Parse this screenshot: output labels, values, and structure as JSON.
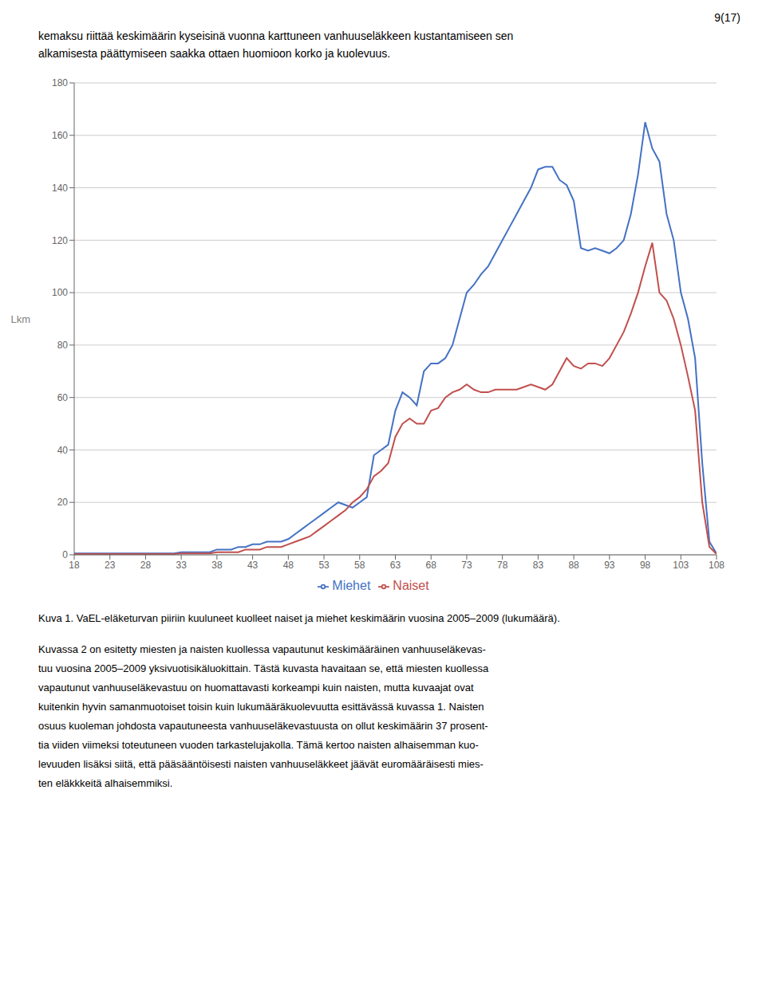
{
  "page_number": "9(17)",
  "header_lines": [
    "kemaksu riittää keskimäärin kyseisinä vuonna karttuneen vanhuuseläkkeen kustantamiseen sen",
    "alkamisesta päättymiseen saakka ottaen huomioon korko ja kuolevuus."
  ],
  "caption": "Kuva 1. VaEL-eläketurvan piiriin kuuluneet kuolleet naiset ja miehet keskimäärin vuosina 2005–2009 (lukumäärä).",
  "body_text": [
    "Kuvassa 2 on esitetty miesten ja naisten kuollessa vapautunut keskimääräinen vanhuuseläkevas-",
    "tuu vuosina 2005–2009 yksivuotisikäluokittain. Tästä kuvasta havaitaan se, että miesten kuollessa",
    "vapautunut vanhuuseläkevastuu on huomattavasti korkeampi kuin naisten, mutta kuvaajat ovat",
    "kuitenkin hyvin samanmuotoiset toisin kuin lukumääräkuolevuutta esittävässä kuvassa 1. Naisten",
    "osuus kuoleman johdosta vapautuneesta vanhuuseläkevastuusta on ollut keskimäärin 37 prosent-",
    "tia viiden viimeksi toteutuneen vuoden tarkastelujakolla. Tämä kertoo naisten alhaisemman kuo-",
    "levuuden lisäksi siitä, että pääsääntöisesti naisten vanhuuseläkkeet jäävät euromääräisesti mies-",
    "ten eläkkkeitä alhaisemmiksi."
  ],
  "chart_data": {
    "type": "line",
    "ylabel": "Lkm",
    "x": [
      18,
      19,
      20,
      21,
      22,
      23,
      24,
      25,
      26,
      27,
      28,
      29,
      30,
      31,
      32,
      33,
      34,
      35,
      36,
      37,
      38,
      39,
      40,
      41,
      42,
      43,
      44,
      45,
      46,
      47,
      48,
      49,
      50,
      51,
      52,
      53,
      54,
      55,
      56,
      57,
      58,
      59,
      60,
      61,
      62,
      63,
      64,
      65,
      66,
      67,
      68,
      69,
      70,
      71,
      72,
      73,
      74,
      75,
      76,
      77,
      78,
      79,
      80,
      81,
      82,
      83,
      84,
      85,
      86,
      87,
      88,
      89,
      90,
      91,
      92,
      93,
      94,
      95,
      96,
      97,
      98,
      99,
      100,
      101,
      102,
      103,
      104,
      105,
      106,
      107,
      108
    ],
    "series": [
      {
        "name": "Miehet",
        "color": "#4472C4",
        "values": [
          0.5,
          0.5,
          0.5,
          0.5,
          0.5,
          0.5,
          0.5,
          0.5,
          0.5,
          0.5,
          0.5,
          0.5,
          0.5,
          0.5,
          0.5,
          1.0,
          1.0,
          1.0,
          1.0,
          1.0,
          2.0,
          2.0,
          2.0,
          3.0,
          3.0,
          4.0,
          4.0,
          5.0,
          5.0,
          5.0,
          6.0,
          8.0,
          10.0,
          12.0,
          14.0,
          16.0,
          18.0,
          20.0,
          19.0,
          18.0,
          20.0,
          22.0,
          38.0,
          40.0,
          42.0,
          55.0,
          62.0,
          60.0,
          57.0,
          70.0,
          73.0,
          73.0,
          75.0,
          80.0,
          90.0,
          100.0,
          103.0,
          107.0,
          110.0,
          115.0,
          120.0,
          125.0,
          130.0,
          135.0,
          140.0,
          147.0,
          148.0,
          148.0,
          143.0,
          141.0,
          135.0,
          117.0,
          116.0,
          117.0,
          116.0,
          115.0,
          117.0,
          120.0,
          130.0,
          145.0,
          165.0,
          155.0,
          150.0,
          130.0,
          120.0,
          100.0,
          90.0,
          75.0,
          35.0,
          5.0,
          0.5
        ]
      },
      {
        "name": "Naiset",
        "color": "#C0504D",
        "values": [
          0.3,
          0.3,
          0.3,
          0.3,
          0.3,
          0.3,
          0.3,
          0.3,
          0.3,
          0.3,
          0.3,
          0.3,
          0.3,
          0.3,
          0.3,
          0.5,
          0.5,
          0.5,
          0.5,
          0.5,
          1.0,
          1.0,
          1.0,
          1.0,
          2.0,
          2.0,
          2.0,
          3.0,
          3.0,
          3.0,
          4.0,
          5.0,
          6.0,
          7.0,
          9.0,
          11.0,
          13.0,
          15.0,
          17.0,
          20.0,
          22.0,
          25.0,
          30.0,
          32.0,
          35.0,
          45.0,
          50.0,
          52.0,
          50.0,
          50.0,
          55.0,
          56.0,
          60.0,
          62.0,
          63.0,
          65.0,
          63.0,
          62.0,
          62.0,
          63.0,
          63.0,
          63.0,
          63.0,
          64.0,
          65.0,
          64.0,
          63.0,
          65.0,
          70.0,
          75.0,
          72.0,
          71.0,
          73.0,
          73.0,
          72.0,
          75.0,
          80.0,
          85.0,
          92.0,
          100.0,
          110.0,
          119.0,
          100.0,
          97.0,
          90.0,
          80.0,
          68.0,
          55.0,
          20.0,
          3.0,
          0.3
        ]
      }
    ],
    "xlim": [
      18,
      108
    ],
    "ylim": [
      0,
      180
    ],
    "xticks": [
      18,
      23,
      28,
      33,
      38,
      43,
      48,
      53,
      58,
      63,
      68,
      73,
      78,
      83,
      88,
      93,
      98,
      103,
      108
    ],
    "yticks": [
      0,
      20,
      40,
      60,
      80,
      100,
      120,
      140,
      160,
      180
    ],
    "grid": "y",
    "legend": "bottom"
  }
}
